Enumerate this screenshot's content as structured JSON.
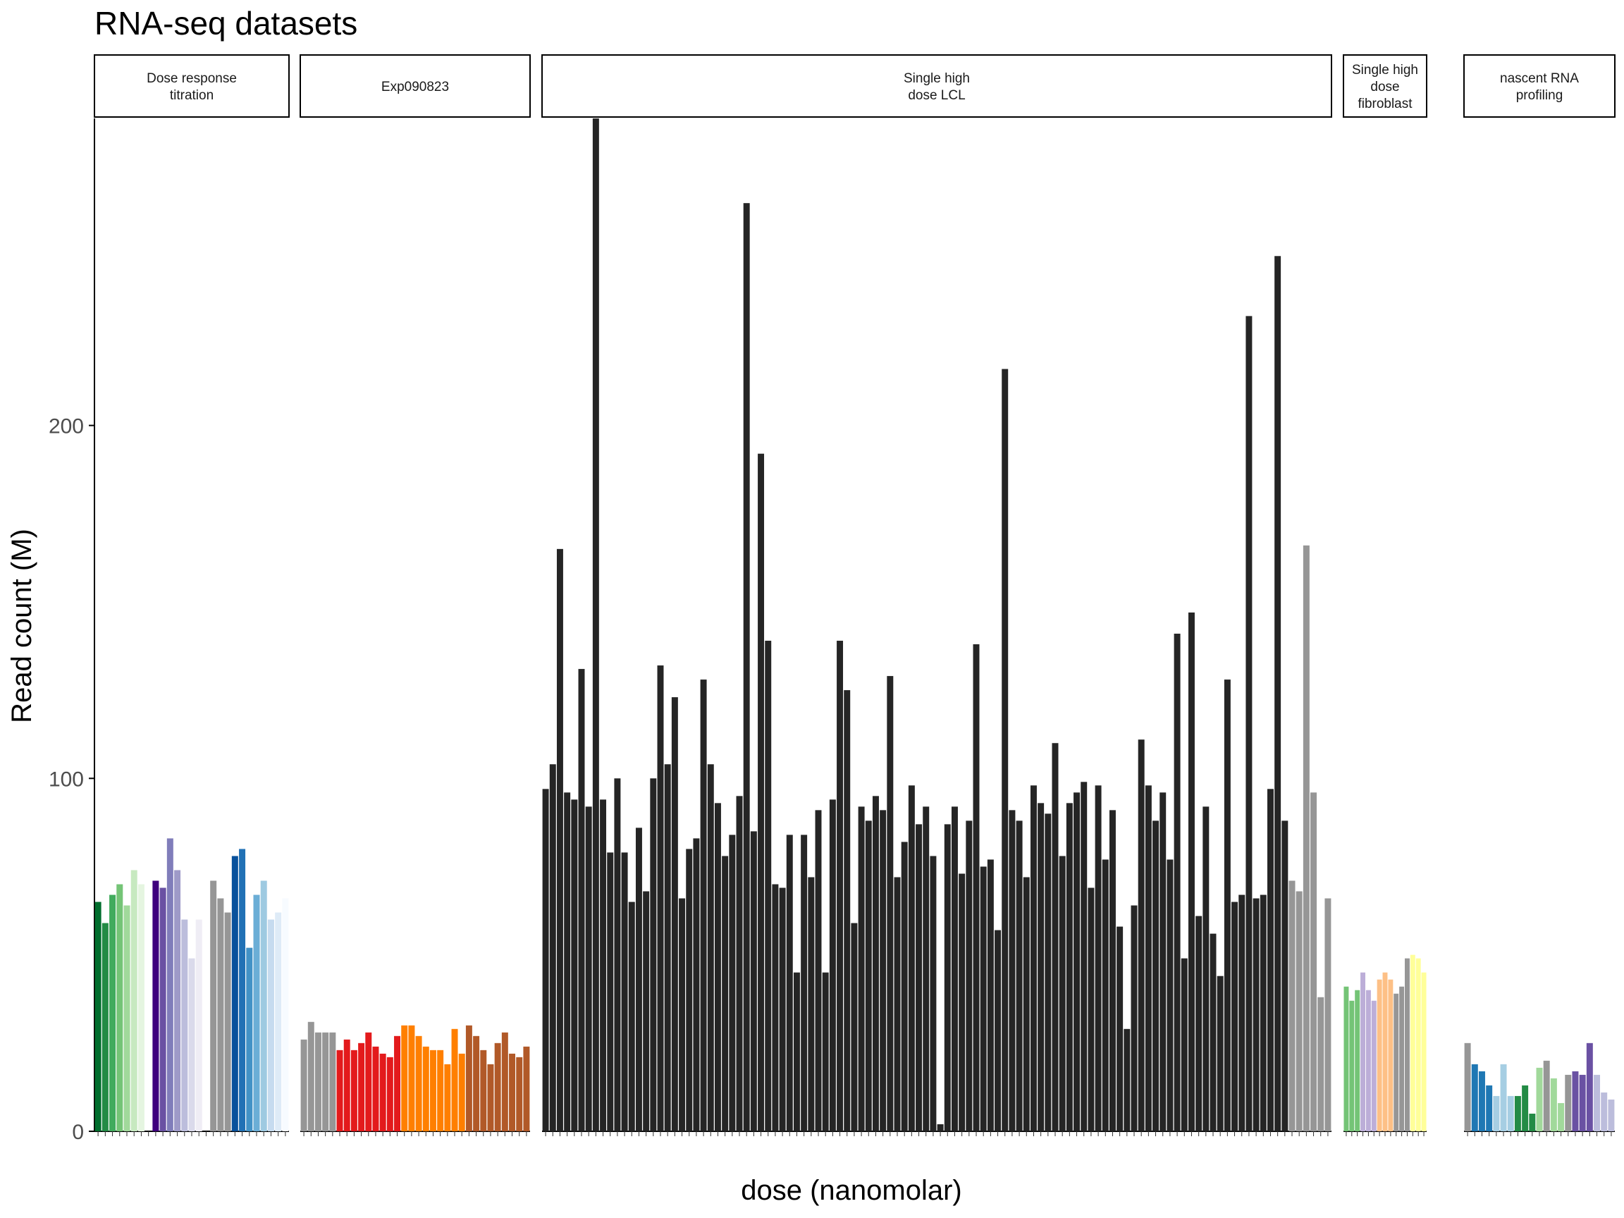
{
  "chart_data": {
    "type": "bar",
    "title": "RNA-seq datasets",
    "xlabel": "dose (nanomolar)",
    "ylabel": "Read count (M)",
    "yticks": [
      0,
      100,
      200
    ],
    "ylim": [
      0,
      287
    ],
    "grid": false,
    "legend": "none",
    "facets": [
      {
        "label": "Dose response\ntitration",
        "bars": [
          {
            "v": 65,
            "c": "#006d2c"
          },
          {
            "v": 59,
            "c": "#238b45"
          },
          {
            "v": 67,
            "c": "#41ab5d"
          },
          {
            "v": 70,
            "c": "#74c476"
          },
          {
            "v": 64,
            "c": "#a1d99b"
          },
          {
            "v": 74,
            "c": "#c7e9c0"
          },
          {
            "v": 70,
            "c": "#e5f5e0"
          },
          {
            "v": null,
            "c": "#ffffff"
          },
          {
            "v": 71,
            "c": "#3f007d"
          },
          {
            "v": 69,
            "c": "#6a51a3"
          },
          {
            "v": 83,
            "c": "#807dba"
          },
          {
            "v": 74,
            "c": "#9e9ac8"
          },
          {
            "v": 60,
            "c": "#bcbddc"
          },
          {
            "v": 49,
            "c": "#dadaeb"
          },
          {
            "v": 60,
            "c": "#efedf5"
          },
          {
            "v": null,
            "c": "#ffffff"
          },
          {
            "v": 71,
            "c": "#969696"
          },
          {
            "v": 66,
            "c": "#969696"
          },
          {
            "v": 62,
            "c": "#969696"
          },
          {
            "v": 78,
            "c": "#08519c"
          },
          {
            "v": 80,
            "c": "#2171b5"
          },
          {
            "v": 52,
            "c": "#4292c6"
          },
          {
            "v": 67,
            "c": "#6baed6"
          },
          {
            "v": 71,
            "c": "#9ecae1"
          },
          {
            "v": 60,
            "c": "#c6dbef"
          },
          {
            "v": 62,
            "c": "#deebf7"
          },
          {
            "v": 66,
            "c": "#f7fbff"
          }
        ]
      },
      {
        "label": "Exp090823",
        "bars": [
          {
            "v": 26,
            "c": "#969696"
          },
          {
            "v": 31,
            "c": "#969696"
          },
          {
            "v": 28,
            "c": "#969696"
          },
          {
            "v": 28,
            "c": "#969696"
          },
          {
            "v": 28,
            "c": "#969696"
          },
          {
            "v": 23,
            "c": "#e31a1c"
          },
          {
            "v": 26,
            "c": "#e31a1c"
          },
          {
            "v": 23,
            "c": "#e31a1c"
          },
          {
            "v": 25,
            "c": "#e31a1c"
          },
          {
            "v": 28,
            "c": "#e31a1c"
          },
          {
            "v": 24,
            "c": "#e31a1c"
          },
          {
            "v": 22,
            "c": "#e31a1c"
          },
          {
            "v": 21,
            "c": "#e31a1c"
          },
          {
            "v": 27,
            "c": "#e31a1c"
          },
          {
            "v": 30,
            "c": "#ff7f00"
          },
          {
            "v": 30,
            "c": "#ff7f00"
          },
          {
            "v": 27,
            "c": "#ff7f00"
          },
          {
            "v": 24,
            "c": "#ff7f00"
          },
          {
            "v": 23,
            "c": "#ff7f00"
          },
          {
            "v": 23,
            "c": "#ff7f00"
          },
          {
            "v": 19,
            "c": "#ff7f00"
          },
          {
            "v": 29,
            "c": "#ff7f00"
          },
          {
            "v": 22,
            "c": "#ff7f00"
          },
          {
            "v": 30,
            "c": "#b15928"
          },
          {
            "v": 27,
            "c": "#b15928"
          },
          {
            "v": 23,
            "c": "#b15928"
          },
          {
            "v": 19,
            "c": "#b15928"
          },
          {
            "v": 25,
            "c": "#b15928"
          },
          {
            "v": 28,
            "c": "#b15928"
          },
          {
            "v": 22,
            "c": "#b15928"
          },
          {
            "v": 21,
            "c": "#b15928"
          },
          {
            "v": 24,
            "c": "#b15928"
          }
        ]
      },
      {
        "label": "Single high\ndose LCL",
        "bars": [
          {
            "v": 97,
            "c": "#252525"
          },
          {
            "v": 104,
            "c": "#252525"
          },
          {
            "v": 165,
            "c": "#252525"
          },
          {
            "v": 96,
            "c": "#252525"
          },
          {
            "v": 94,
            "c": "#252525"
          },
          {
            "v": 131,
            "c": "#252525"
          },
          {
            "v": 92,
            "c": "#252525"
          },
          {
            "v": 287,
            "c": "#252525"
          },
          {
            "v": 94,
            "c": "#252525"
          },
          {
            "v": 79,
            "c": "#252525"
          },
          {
            "v": 100,
            "c": "#252525"
          },
          {
            "v": 79,
            "c": "#252525"
          },
          {
            "v": 65,
            "c": "#252525"
          },
          {
            "v": 86,
            "c": "#252525"
          },
          {
            "v": 68,
            "c": "#252525"
          },
          {
            "v": 100,
            "c": "#252525"
          },
          {
            "v": 132,
            "c": "#252525"
          },
          {
            "v": 104,
            "c": "#252525"
          },
          {
            "v": 123,
            "c": "#252525"
          },
          {
            "v": 66,
            "c": "#252525"
          },
          {
            "v": 80,
            "c": "#252525"
          },
          {
            "v": 83,
            "c": "#252525"
          },
          {
            "v": 128,
            "c": "#252525"
          },
          {
            "v": 104,
            "c": "#252525"
          },
          {
            "v": 93,
            "c": "#252525"
          },
          {
            "v": 78,
            "c": "#252525"
          },
          {
            "v": 84,
            "c": "#252525"
          },
          {
            "v": 95,
            "c": "#252525"
          },
          {
            "v": 263,
            "c": "#252525"
          },
          {
            "v": 85,
            "c": "#252525"
          },
          {
            "v": 192,
            "c": "#252525"
          },
          {
            "v": 139,
            "c": "#252525"
          },
          {
            "v": 70,
            "c": "#252525"
          },
          {
            "v": 69,
            "c": "#252525"
          },
          {
            "v": 84,
            "c": "#252525"
          },
          {
            "v": 45,
            "c": "#252525"
          },
          {
            "v": 84,
            "c": "#252525"
          },
          {
            "v": 72,
            "c": "#252525"
          },
          {
            "v": 91,
            "c": "#252525"
          },
          {
            "v": 45,
            "c": "#252525"
          },
          {
            "v": 94,
            "c": "#252525"
          },
          {
            "v": 139,
            "c": "#252525"
          },
          {
            "v": 125,
            "c": "#252525"
          },
          {
            "v": 59,
            "c": "#252525"
          },
          {
            "v": 92,
            "c": "#252525"
          },
          {
            "v": 88,
            "c": "#252525"
          },
          {
            "v": 95,
            "c": "#252525"
          },
          {
            "v": 91,
            "c": "#252525"
          },
          {
            "v": 129,
            "c": "#252525"
          },
          {
            "v": 72,
            "c": "#252525"
          },
          {
            "v": 82,
            "c": "#252525"
          },
          {
            "v": 98,
            "c": "#252525"
          },
          {
            "v": 87,
            "c": "#252525"
          },
          {
            "v": 92,
            "c": "#252525"
          },
          {
            "v": 78,
            "c": "#252525"
          },
          {
            "v": 2,
            "c": "#252525"
          },
          {
            "v": 87,
            "c": "#252525"
          },
          {
            "v": 92,
            "c": "#252525"
          },
          {
            "v": 73,
            "c": "#252525"
          },
          {
            "v": 88,
            "c": "#252525"
          },
          {
            "v": 138,
            "c": "#252525"
          },
          {
            "v": 75,
            "c": "#252525"
          },
          {
            "v": 77,
            "c": "#252525"
          },
          {
            "v": 57,
            "c": "#252525"
          },
          {
            "v": 216,
            "c": "#252525"
          },
          {
            "v": 91,
            "c": "#252525"
          },
          {
            "v": 88,
            "c": "#252525"
          },
          {
            "v": 72,
            "c": "#252525"
          },
          {
            "v": 98,
            "c": "#252525"
          },
          {
            "v": 93,
            "c": "#252525"
          },
          {
            "v": 90,
            "c": "#252525"
          },
          {
            "v": 110,
            "c": "#252525"
          },
          {
            "v": 78,
            "c": "#252525"
          },
          {
            "v": 93,
            "c": "#252525"
          },
          {
            "v": 96,
            "c": "#252525"
          },
          {
            "v": 99,
            "c": "#252525"
          },
          {
            "v": 69,
            "c": "#252525"
          },
          {
            "v": 98,
            "c": "#252525"
          },
          {
            "v": 77,
            "c": "#252525"
          },
          {
            "v": 91,
            "c": "#252525"
          },
          {
            "v": 58,
            "c": "#252525"
          },
          {
            "v": 29,
            "c": "#252525"
          },
          {
            "v": 64,
            "c": "#252525"
          },
          {
            "v": 111,
            "c": "#252525"
          },
          {
            "v": 98,
            "c": "#252525"
          },
          {
            "v": 88,
            "c": "#252525"
          },
          {
            "v": 96,
            "c": "#252525"
          },
          {
            "v": 77,
            "c": "#252525"
          },
          {
            "v": 141,
            "c": "#252525"
          },
          {
            "v": 49,
            "c": "#252525"
          },
          {
            "v": 147,
            "c": "#252525"
          },
          {
            "v": 61,
            "c": "#252525"
          },
          {
            "v": 92,
            "c": "#252525"
          },
          {
            "v": 56,
            "c": "#252525"
          },
          {
            "v": 44,
            "c": "#252525"
          },
          {
            "v": 128,
            "c": "#252525"
          },
          {
            "v": 65,
            "c": "#252525"
          },
          {
            "v": 67,
            "c": "#252525"
          },
          {
            "v": 231,
            "c": "#252525"
          },
          {
            "v": 66,
            "c": "#252525"
          },
          {
            "v": 67,
            "c": "#252525"
          },
          {
            "v": 97,
            "c": "#252525"
          },
          {
            "v": 248,
            "c": "#252525"
          },
          {
            "v": 88,
            "c": "#252525"
          },
          {
            "v": 71,
            "c": "#969696"
          },
          {
            "v": 68,
            "c": "#969696"
          },
          {
            "v": 166,
            "c": "#969696"
          },
          {
            "v": 96,
            "c": "#969696"
          },
          {
            "v": 38,
            "c": "#969696"
          },
          {
            "v": 66,
            "c": "#969696"
          }
        ]
      },
      {
        "label": "Single high\ndose\nfibroblast",
        "bars": [
          {
            "v": 41,
            "c": "#74c476"
          },
          {
            "v": 37,
            "c": "#74c476"
          },
          {
            "v": 40,
            "c": "#74c476"
          },
          {
            "v": 45,
            "c": "#bcaed8"
          },
          {
            "v": 40,
            "c": "#bcaed8"
          },
          {
            "v": 37,
            "c": "#bcaed8"
          },
          {
            "v": 43,
            "c": "#fdc086"
          },
          {
            "v": 45,
            "c": "#fdc086"
          },
          {
            "v": 43,
            "c": "#fdc086"
          },
          {
            "v": 39,
            "c": "#969696"
          },
          {
            "v": 41,
            "c": "#969696"
          },
          {
            "v": 49,
            "c": "#969696"
          },
          {
            "v": 50,
            "c": "#ffff99"
          },
          {
            "v": 49,
            "c": "#ffff99"
          },
          {
            "v": 45,
            "c": "#ffff99"
          }
        ]
      },
      {
        "label": "nascent RNA\nprofiling",
        "bars": [
          {
            "v": 25,
            "c": "#969696"
          },
          {
            "v": 19,
            "c": "#1f78b4"
          },
          {
            "v": 17,
            "c": "#1f78b4"
          },
          {
            "v": 13,
            "c": "#1f78b4"
          },
          {
            "v": 10,
            "c": "#a6cee3"
          },
          {
            "v": 19,
            "c": "#a6cee3"
          },
          {
            "v": 10,
            "c": "#a6cee3"
          },
          {
            "v": 10,
            "c": "#238b45"
          },
          {
            "v": 13,
            "c": "#238b45"
          },
          {
            "v": 5,
            "c": "#238b45"
          },
          {
            "v": 18,
            "c": "#a1d99b"
          },
          {
            "v": 20,
            "c": "#969696"
          },
          {
            "v": 15,
            "c": "#a1d99b"
          },
          {
            "v": 8,
            "c": "#a1d99b"
          },
          {
            "v": 16,
            "c": "#969696"
          },
          {
            "v": 17,
            "c": "#6a51a3"
          },
          {
            "v": 16,
            "c": "#6a51a3"
          },
          {
            "v": 25,
            "c": "#6a51a3"
          },
          {
            "v": 16,
            "c": "#bcbddc"
          },
          {
            "v": 11,
            "c": "#bcbddc"
          },
          {
            "v": 9,
            "c": "#bcbddc"
          }
        ]
      }
    ]
  }
}
